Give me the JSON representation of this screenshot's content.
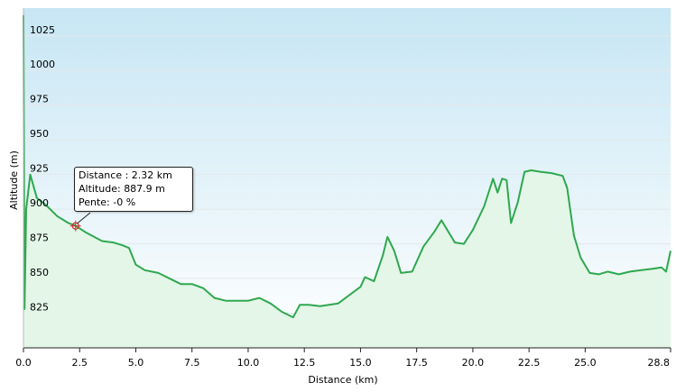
{
  "chart_data": {
    "type": "area",
    "xlabel": "Distance  (km)",
    "ylabel": "Altitude (m)",
    "xlim": [
      0,
      28.8
    ],
    "ylim": [
      800,
      1045
    ],
    "grid": true,
    "x_ticks": [
      "0.0",
      "2.5",
      "5.0",
      "7.5",
      "10.0",
      "12.5",
      "15.0",
      "17.5",
      "20.0",
      "22.5",
      "25.0",
      "28.8"
    ],
    "y_ticks": [
      "825",
      "850",
      "875",
      "900",
      "925",
      "950",
      "975",
      "1000",
      "1025"
    ],
    "line_color": "#2fa84f",
    "fill_color": "#e3f6e8",
    "series": [
      {
        "x": [
          0.0,
          0.05,
          0.12,
          0.3,
          0.6,
          1.0,
          1.5,
          2.0,
          2.32,
          2.8,
          3.5,
          4.0,
          4.4,
          4.7,
          5.0,
          5.4,
          6.0,
          7.0,
          7.5,
          8.0,
          8.5,
          9.0,
          10.0,
          10.5,
          11.0,
          11.5,
          12.0,
          12.3,
          12.7,
          13.2,
          13.6,
          14.0,
          14.5,
          15.0,
          15.2,
          15.6,
          16.0,
          16.2,
          16.5,
          16.8,
          17.3,
          17.8,
          18.3,
          18.6,
          18.9,
          19.2,
          19.6,
          20.0,
          20.5,
          20.9,
          21.1,
          21.3,
          21.5,
          21.7,
          22.0,
          22.3,
          22.6,
          23.0,
          23.5,
          24.0,
          24.2,
          24.5,
          24.8,
          25.2,
          25.6,
          26.0,
          26.5,
          27.0,
          27.5,
          28.0,
          28.4,
          28.6,
          28.8
        ],
        "y": [
          1040,
          828,
          900,
          925,
          908,
          903,
          895,
          890,
          888,
          883,
          877,
          876,
          874,
          872,
          860,
          856,
          854,
          846,
          846,
          843,
          836,
          834,
          834,
          836,
          832,
          826,
          822,
          831,
          831,
          830,
          831,
          832,
          838,
          844,
          851,
          848,
          867,
          880,
          870,
          854,
          855,
          873,
          884,
          892,
          884,
          876,
          875,
          885,
          902,
          922,
          912,
          922,
          921,
          890,
          905,
          927,
          928,
          927,
          926,
          924,
          915,
          881,
          865,
          854,
          853,
          855,
          853,
          855,
          856,
          857,
          858,
          855,
          870
        ]
      }
    ],
    "annotation": {
      "marker_x": 2.32,
      "marker_y": 887.9
    }
  },
  "tooltip": {
    "distance": "Distance  : 2.32 km",
    "altitude": "Altitude: 887.9 m",
    "slope": "Pente: -0 %"
  }
}
